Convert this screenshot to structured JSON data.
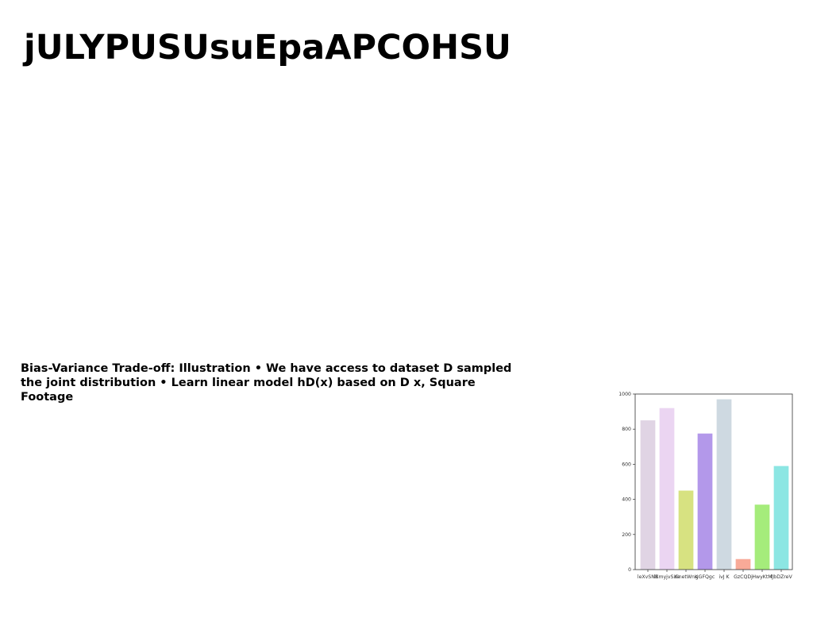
{
  "slide": {
    "title": "jULYPUSUsuEpaAPCOHSU",
    "body": "Bias-Variance Trade-off: Illustration • We have access to dataset D sampled the joint distribution • Learn linear model hD(x) based on D x, Square Footage"
  },
  "chart_data": {
    "type": "bar",
    "categories": [
      "leXvSNB",
      "lXmyjvSXa",
      "dinetWnK",
      "gGFQgc",
      "ivJ K",
      "GzCQDj",
      "HwyKtM",
      "fJbDZreV"
    ],
    "values": [
      850,
      920,
      450,
      775,
      970,
      60,
      370,
      590
    ],
    "colors": [
      "#e0d4e4",
      "#ebd5f2",
      "#d7e281",
      "#b398ea",
      "#ced9e1",
      "#f8aa98",
      "#a5ec7b",
      "#8ce6e3"
    ],
    "ylim": [
      0,
      1000
    ],
    "yticks": [
      0,
      200,
      400,
      600,
      800,
      1000
    ],
    "grid": false,
    "legend": "none"
  }
}
